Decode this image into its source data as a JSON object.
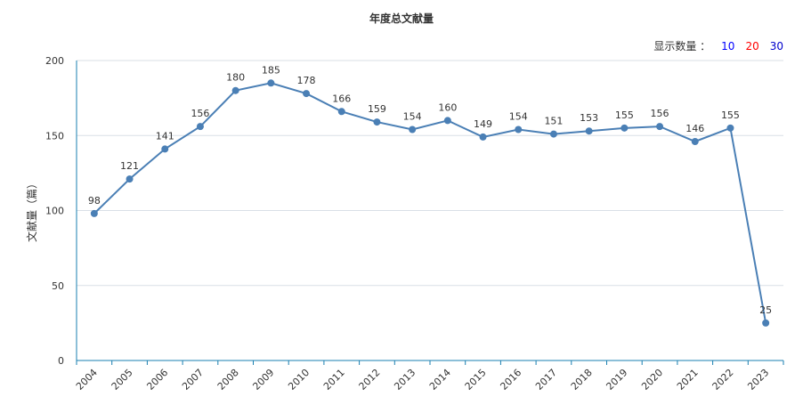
{
  "title": "年度总文献量",
  "display_count": {
    "label": "显示数量 ：",
    "options": [
      {
        "text": "10",
        "color": "#0000ff"
      },
      {
        "text": "20",
        "color": "#ff0000"
      },
      {
        "text": "30",
        "color": "#0000cc"
      }
    ]
  },
  "colors": {
    "line": "#4a7fb5",
    "axis": "#1a7fb0",
    "grid": "#d9dfe6"
  },
  "chart_data": {
    "type": "line",
    "title": "年度总文献量",
    "xlabel": "",
    "ylabel": "文献量（篇）",
    "ylim": [
      0,
      200
    ],
    "yticks": [
      0,
      50,
      100,
      150,
      200
    ],
    "grid": true,
    "categories": [
      "2004",
      "2005",
      "2006",
      "2007",
      "2008",
      "2009",
      "2010",
      "2011",
      "2012",
      "2013",
      "2014",
      "2015",
      "2016",
      "2017",
      "2018",
      "2019",
      "2020",
      "2021",
      "2022",
      "2023"
    ],
    "series": [
      {
        "values": [
          98,
          121,
          141,
          156,
          180,
          185,
          178,
          166,
          159,
          154,
          160,
          149,
          154,
          151,
          153,
          155,
          156,
          146,
          155,
          25
        ]
      }
    ]
  }
}
